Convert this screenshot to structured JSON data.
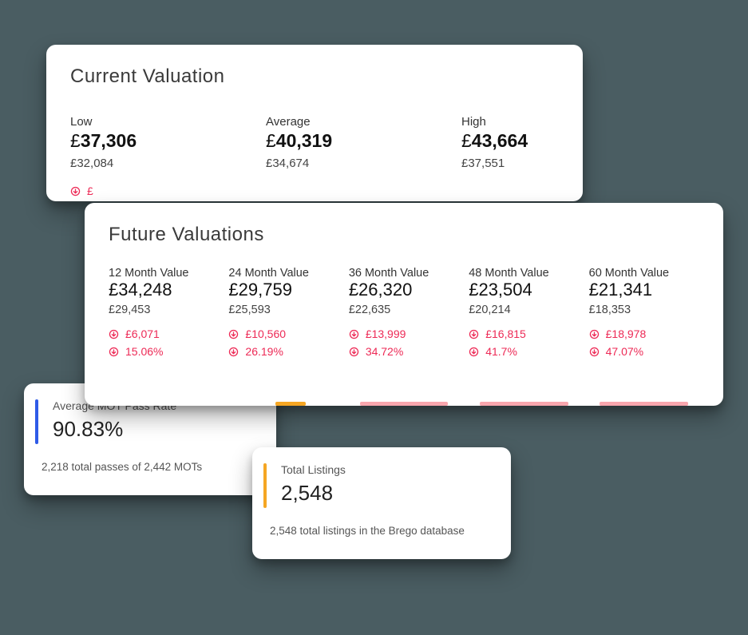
{
  "colors": {
    "page_bg": "#4a5d62",
    "card_bg": "#ffffff",
    "text_primary": "#1e1e1e",
    "text_muted": "#555555",
    "delta_down": "#ed2a56",
    "accent_mot": "#2f5be7",
    "accent_listings": "#f5a623",
    "bar_orange": "#f5a623",
    "bar_pink": "#f8a6ad"
  },
  "current": {
    "title": "Current Valuation",
    "columns": [
      {
        "label": "Low",
        "currency": "£",
        "value": "37,306",
        "sub": "£32,084"
      },
      {
        "label": "Average",
        "currency": "£",
        "value": "40,319",
        "sub": "£34,674"
      },
      {
        "label": "High",
        "currency": "£",
        "value": "43,664",
        "sub": "£37,551"
      }
    ],
    "clipped_delta_prefix": "£"
  },
  "future": {
    "title": "Future Valuations",
    "columns": [
      {
        "label": "12 Month Value",
        "main": "£34,248",
        "sub": "£29,453",
        "delta_value": "£6,071",
        "delta_pct": "15.06%"
      },
      {
        "label": "24 Month Value",
        "main": "£29,759",
        "sub": "£25,593",
        "delta_value": "£10,560",
        "delta_pct": "26.19%"
      },
      {
        "label": "36 Month Value",
        "main": "£26,320",
        "sub": "£22,635",
        "delta_value": "£13,999",
        "delta_pct": "34.72%"
      },
      {
        "label": "48 Month Value",
        "main": "£23,504",
        "sub": "£20,214",
        "delta_value": "£16,815",
        "delta_pct": "41.7%"
      },
      {
        "label": "60 Month Value",
        "main": "£21,341",
        "sub": "£18,353",
        "delta_value": "£18,978",
        "delta_pct": "47.07%"
      }
    ],
    "bars": [
      {
        "color": "#f5a623",
        "left_pct": 42,
        "width_pct": 28
      },
      {
        "color": "#f8a6ad",
        "left_pct": 10,
        "width_pct": 80
      },
      {
        "color": "#f8a6ad",
        "left_pct": 10,
        "width_pct": 80
      },
      {
        "color": "#f8a6ad",
        "left_pct": 10,
        "width_pct": 80
      }
    ]
  },
  "mot": {
    "title": "Average MOT Pass Rate",
    "value": "90.83%",
    "footer": "2,218 total passes of 2,442 MOTs",
    "accent_color": "#2f5be7"
  },
  "listings": {
    "title": "Total Listings",
    "value": "2,548",
    "footer": "2,548 total listings in the Brego database",
    "accent_color": "#f5a623"
  }
}
